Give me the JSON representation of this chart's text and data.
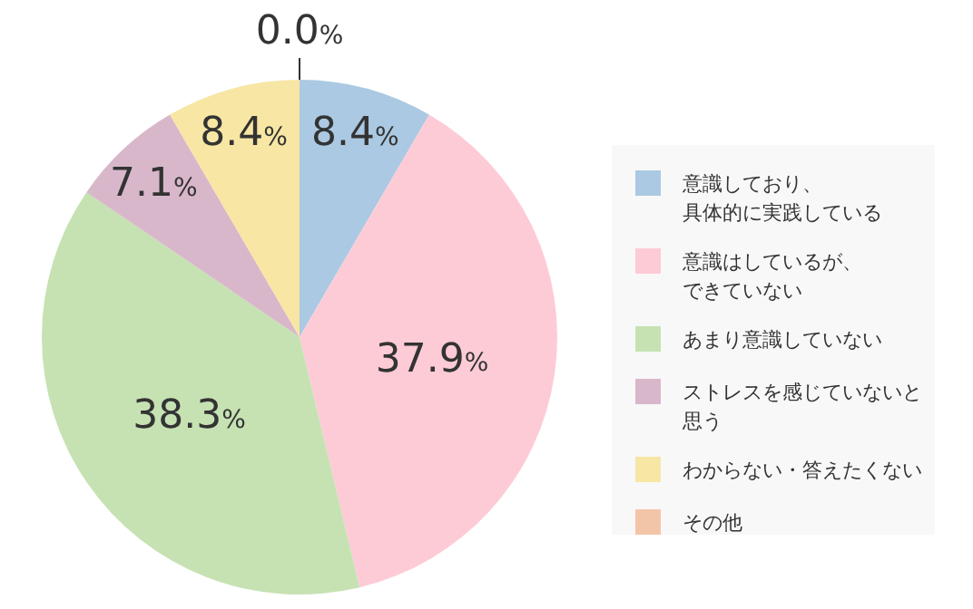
{
  "chart_data": {
    "type": "pie",
    "categories": [
      "意識しており、具体的に実践している",
      "意識はしているが、できていない",
      "あまり意識していない",
      "ストレスを感じていないと思う",
      "わからない・答えたくない",
      "その他"
    ],
    "values": [
      8.4,
      37.9,
      38.3,
      7.1,
      8.4,
      0.0
    ],
    "colors": [
      "#abc9e2",
      "#fdcbd6",
      "#c6e2b3",
      "#d9b7cb",
      "#f7e6a4",
      "#f3c5a7"
    ],
    "value_labels": [
      "8.4%",
      "37.9%",
      "38.3%",
      "7.1%",
      "8.4%",
      "0.0%"
    ],
    "legend": "right"
  }
}
